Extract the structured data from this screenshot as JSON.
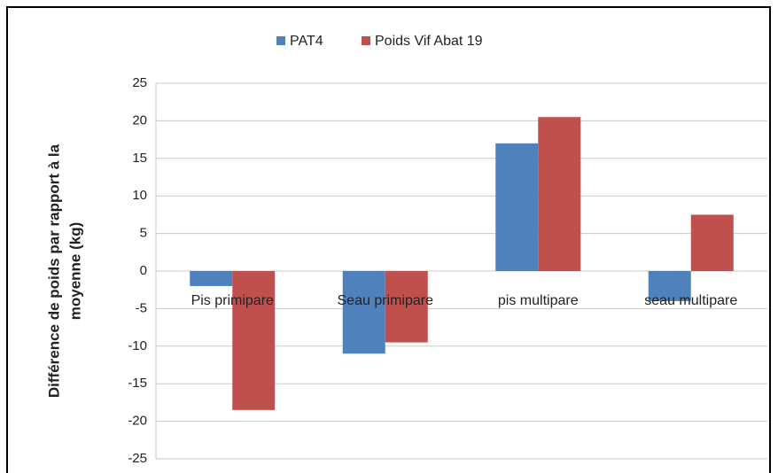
{
  "chart_data": {
    "type": "bar",
    "ylabel": [
      "Différence de poids par rapport à la",
      "moyenne (kg)"
    ],
    "categories": [
      "Pis primipare",
      "Seau primipare",
      "pis multipare",
      "seau multipare"
    ],
    "series": [
      {
        "name": "PAT4",
        "color": "#4f81bd",
        "values": [
          -2,
          -11,
          17,
          -4
        ]
      },
      {
        "name": "Poids Vif Abat 19",
        "color": "#c0504d",
        "values": [
          -18.5,
          -9.5,
          20.5,
          7.5
        ]
      }
    ],
    "ylim": [
      -25,
      25
    ],
    "yticks": [
      -25,
      -20,
      -15,
      -10,
      -5,
      0,
      5,
      10,
      15,
      20,
      25
    ],
    "grid": true,
    "legend": "top"
  }
}
